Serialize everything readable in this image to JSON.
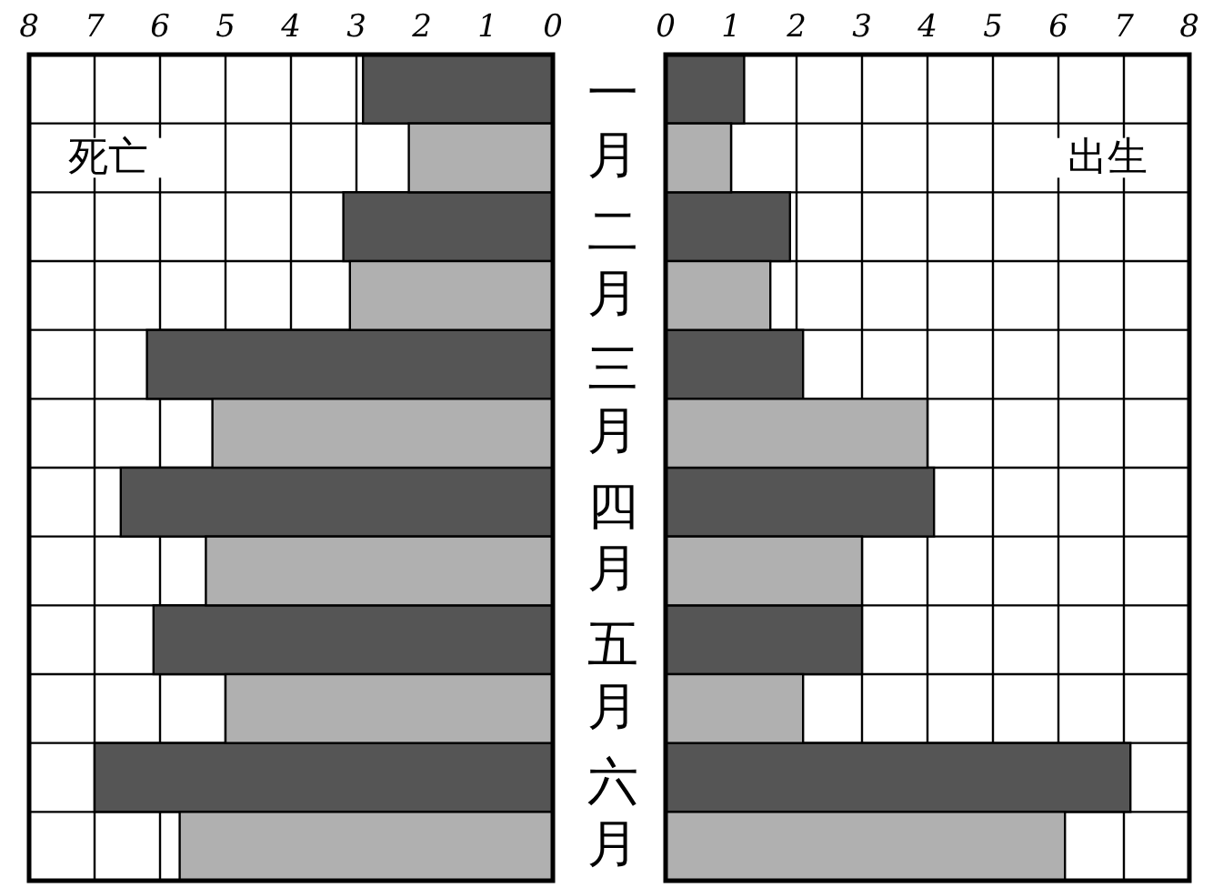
{
  "chart_data": [
    {
      "type": "bar",
      "orientation": "horizontal",
      "title": "死亡",
      "categories": [
        null,
        null,
        null,
        null,
        null,
        null
      ],
      "series": [
        {
          "color": "#555555",
          "values": [
            2.9,
            3.2,
            6.2,
            6.6,
            6.1,
            7.0
          ]
        },
        {
          "color": "#b0b0b0",
          "values": [
            2.2,
            3.1,
            5.2,
            5.3,
            5.0,
            5.7
          ]
        }
      ],
      "xlim": [
        8,
        0
      ],
      "xticks": [
        8,
        7,
        6,
        5,
        4,
        3,
        2,
        1,
        0
      ],
      "grid": true,
      "tick_labels": "x"
    },
    {
      "type": "bar",
      "orientation": "horizontal",
      "title": "出生",
      "categories": [
        "一月",
        "二月",
        "三月",
        "四月",
        "五月",
        "六月"
      ],
      "series": [
        {
          "color": "#555555",
          "values": [
            1.2,
            1.9,
            2.1,
            4.1,
            3.0,
            7.1
          ]
        },
        {
          "color": "#b0b0b0",
          "values": [
            1.0,
            1.6,
            4.0,
            3.0,
            2.1,
            6.1
          ]
        }
      ],
      "xlim": [
        0,
        8
      ],
      "xticks": [
        0,
        1,
        2,
        3,
        4,
        5,
        6,
        7,
        8
      ],
      "grid": true
    }
  ]
}
